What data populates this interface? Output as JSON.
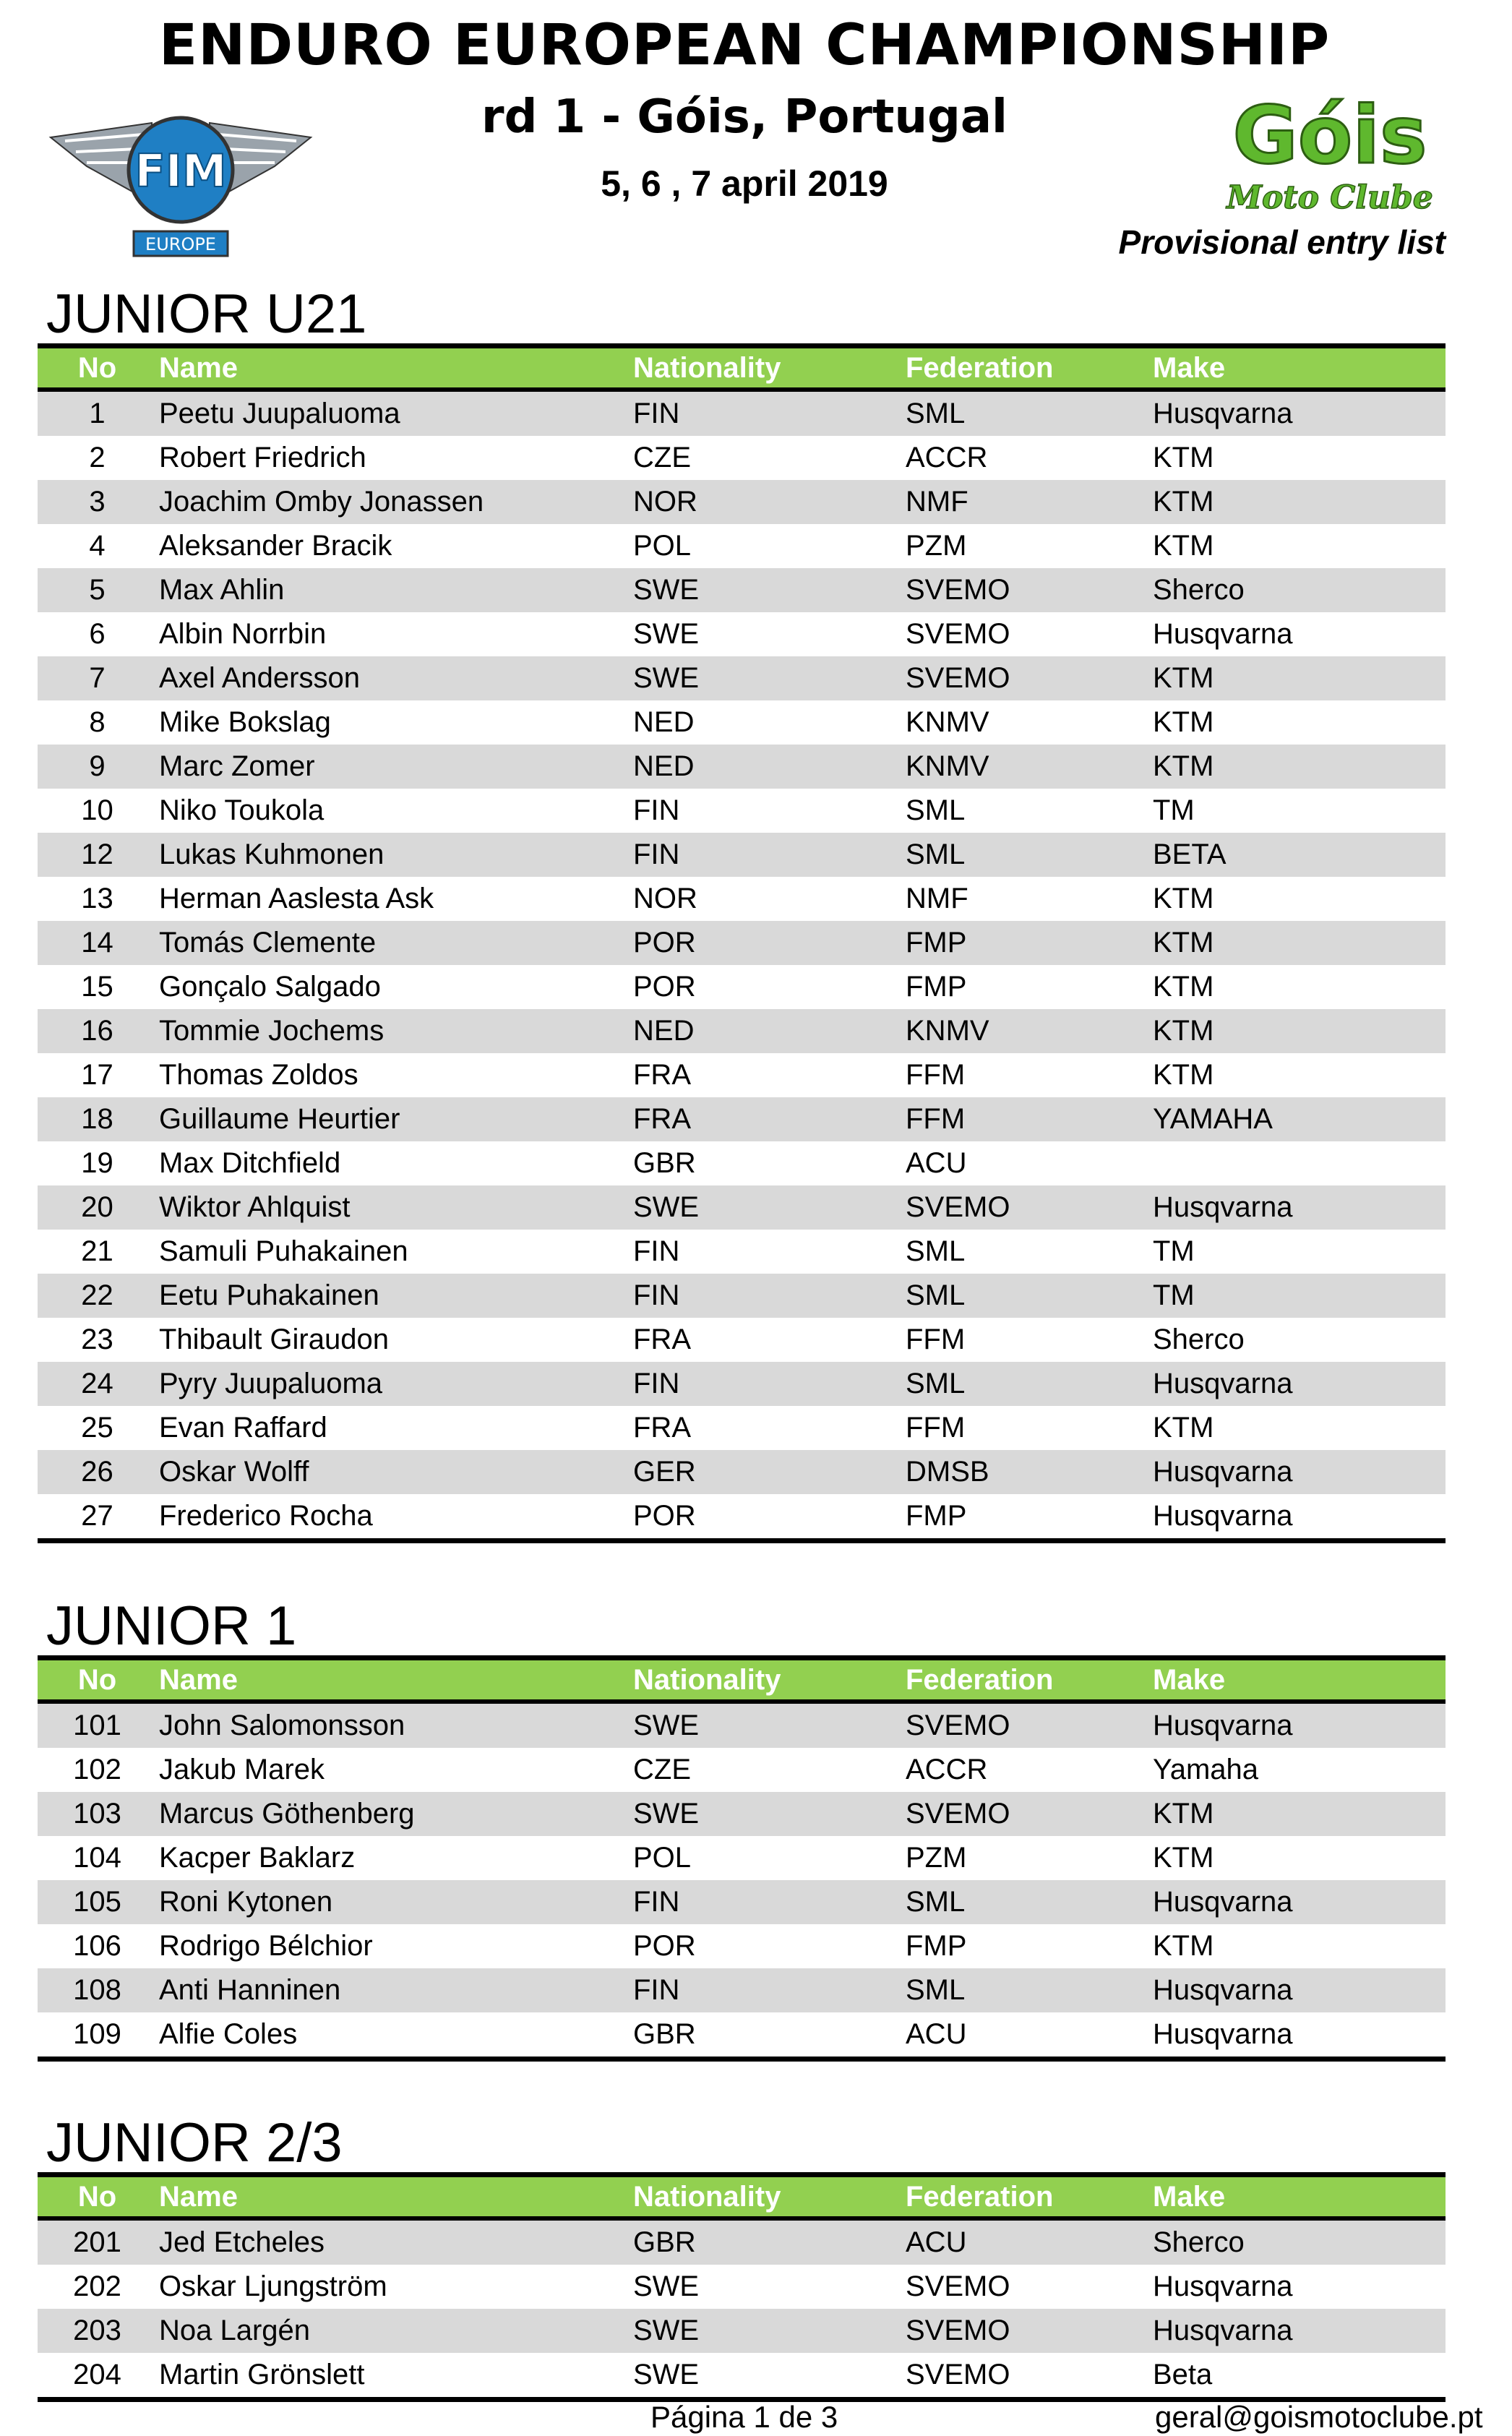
{
  "header": {
    "title": "ENDURO EUROPEAN CHAMPIONSHIP",
    "round": "rd 1 - Góis, Portugal",
    "dates": "5, 6 , 7 april 2019",
    "subtitle": "Provisional entry list",
    "logos": {
      "fim": [
        "FIM",
        "EUROPE"
      ],
      "club": [
        "Góis",
        "Moto Clube"
      ]
    },
    "colors": {
      "header_green": "#92d050",
      "stripe_gray": "#d9d9d9",
      "fim_blue": "#1f7fc4",
      "club_green": "#5fb82e"
    }
  },
  "columns": [
    "No",
    "Name",
    "Nationality",
    "Federation",
    "Make"
  ],
  "sections": [
    {
      "title": "JUNIOR U21",
      "rows": [
        [
          "1",
          "Peetu Juupaluoma",
          "FIN",
          "SML",
          "Husqvarna"
        ],
        [
          "2",
          "Robert Friedrich",
          "CZE",
          "ACCR",
          "KTM"
        ],
        [
          "3",
          "Joachim Omby Jonassen",
          "NOR",
          "NMF",
          "KTM"
        ],
        [
          "4",
          "Aleksander Bracik",
          "POL",
          "PZM",
          "KTM"
        ],
        [
          "5",
          "Max Ahlin",
          "SWE",
          "SVEMO",
          "Sherco"
        ],
        [
          "6",
          "Albin Norrbin",
          "SWE",
          "SVEMO",
          "Husqvarna"
        ],
        [
          "7",
          "Axel Andersson",
          "SWE",
          "SVEMO",
          "KTM"
        ],
        [
          "8",
          "Mike Bokslag",
          "NED",
          "KNMV",
          "KTM"
        ],
        [
          "9",
          "Marc Zomer",
          "NED",
          "KNMV",
          "KTM"
        ],
        [
          "10",
          "Niko Toukola",
          "FIN",
          "SML",
          "TM"
        ],
        [
          "12",
          "Lukas Kuhmonen",
          "FIN",
          "SML",
          "BETA"
        ],
        [
          "13",
          "Herman Aaslesta Ask",
          "NOR",
          "NMF",
          "KTM"
        ],
        [
          "14",
          "Tomás Clemente",
          "POR",
          "FMP",
          "KTM"
        ],
        [
          "15",
          "Gonçalo Salgado",
          "POR",
          "FMP",
          "KTM"
        ],
        [
          "16",
          "Tommie Jochems",
          "NED",
          "KNMV",
          "KTM"
        ],
        [
          "17",
          "Thomas Zoldos",
          "FRA",
          "FFM",
          "KTM"
        ],
        [
          "18",
          "Guillaume Heurtier",
          "FRA",
          "FFM",
          "YAMAHA"
        ],
        [
          "19",
          "Max Ditchfield",
          "GBR",
          "ACU",
          ""
        ],
        [
          "20",
          "Wiktor Ahlquist",
          "SWE",
          "SVEMO",
          "Husqvarna"
        ],
        [
          "21",
          "Samuli Puhakainen",
          "FIN",
          "SML",
          "TM"
        ],
        [
          "22",
          "Eetu Puhakainen",
          "FIN",
          "SML",
          "TM"
        ],
        [
          "23",
          "Thibault Giraudon",
          "FRA",
          "FFM",
          "Sherco"
        ],
        [
          "24",
          "Pyry Juupaluoma",
          "FIN",
          "SML",
          "Husqvarna"
        ],
        [
          "25",
          "Evan Raffard",
          "FRA",
          "FFM",
          "KTM"
        ],
        [
          "26",
          "Oskar Wolff",
          "GER",
          "DMSB",
          "Husqvarna"
        ],
        [
          "27",
          "Frederico Rocha",
          "POR",
          "FMP",
          "Husqvarna"
        ]
      ]
    },
    {
      "title": "JUNIOR 1",
      "rows": [
        [
          "101",
          "John Salomonsson",
          "SWE",
          "SVEMO",
          "Husqvarna"
        ],
        [
          "102",
          "Jakub Marek",
          "CZE",
          "ACCR",
          "Yamaha"
        ],
        [
          "103",
          "Marcus Göthenberg",
          "SWE",
          "SVEMO",
          "KTM"
        ],
        [
          "104",
          "Kacper Baklarz",
          "POL",
          "PZM",
          "KTM"
        ],
        [
          "105",
          "Roni Kytonen",
          "FIN",
          "SML",
          "Husqvarna"
        ],
        [
          "106",
          "Rodrigo Bélchior",
          "POR",
          "FMP",
          "KTM"
        ],
        [
          "108",
          "Anti Hanninen",
          "FIN",
          "SML",
          "Husqvarna"
        ],
        [
          "109",
          "Alfie Coles",
          "GBR",
          "ACU",
          "Husqvarna"
        ]
      ]
    },
    {
      "title": "JUNIOR 2/3",
      "rows": [
        [
          "201",
          "Jed Etcheles",
          "GBR",
          "ACU",
          "Sherco"
        ],
        [
          "202",
          "Oskar Ljungström",
          "SWE",
          "SVEMO",
          "Husqvarna"
        ],
        [
          "203",
          "Noa Largén",
          "SWE",
          "SVEMO",
          "Husqvarna"
        ],
        [
          "204",
          "Martin Grönslett",
          "SWE",
          "SVEMO",
          "Beta"
        ]
      ]
    }
  ],
  "footer": {
    "page": "Página 1 de 3",
    "email": "geral@goismotoclube.pt"
  }
}
